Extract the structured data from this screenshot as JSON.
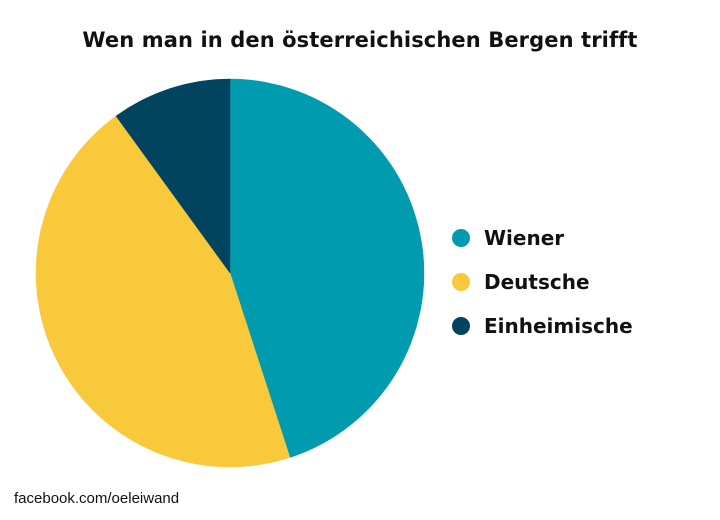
{
  "chart_data": {
    "type": "pie",
    "title": "Wen man in den österreichischen Bergen trifft",
    "categories": [
      "Wiener",
      "Deutsche",
      "Einheimische"
    ],
    "values": [
      45,
      45,
      10
    ],
    "colors": [
      "#009baf",
      "#f9c93c",
      "#02445f"
    ],
    "start_angle_deg": 0,
    "direction": "clockwise",
    "legend_position": "right"
  },
  "footer": {
    "text": "facebook.com/oeleiwand"
  }
}
